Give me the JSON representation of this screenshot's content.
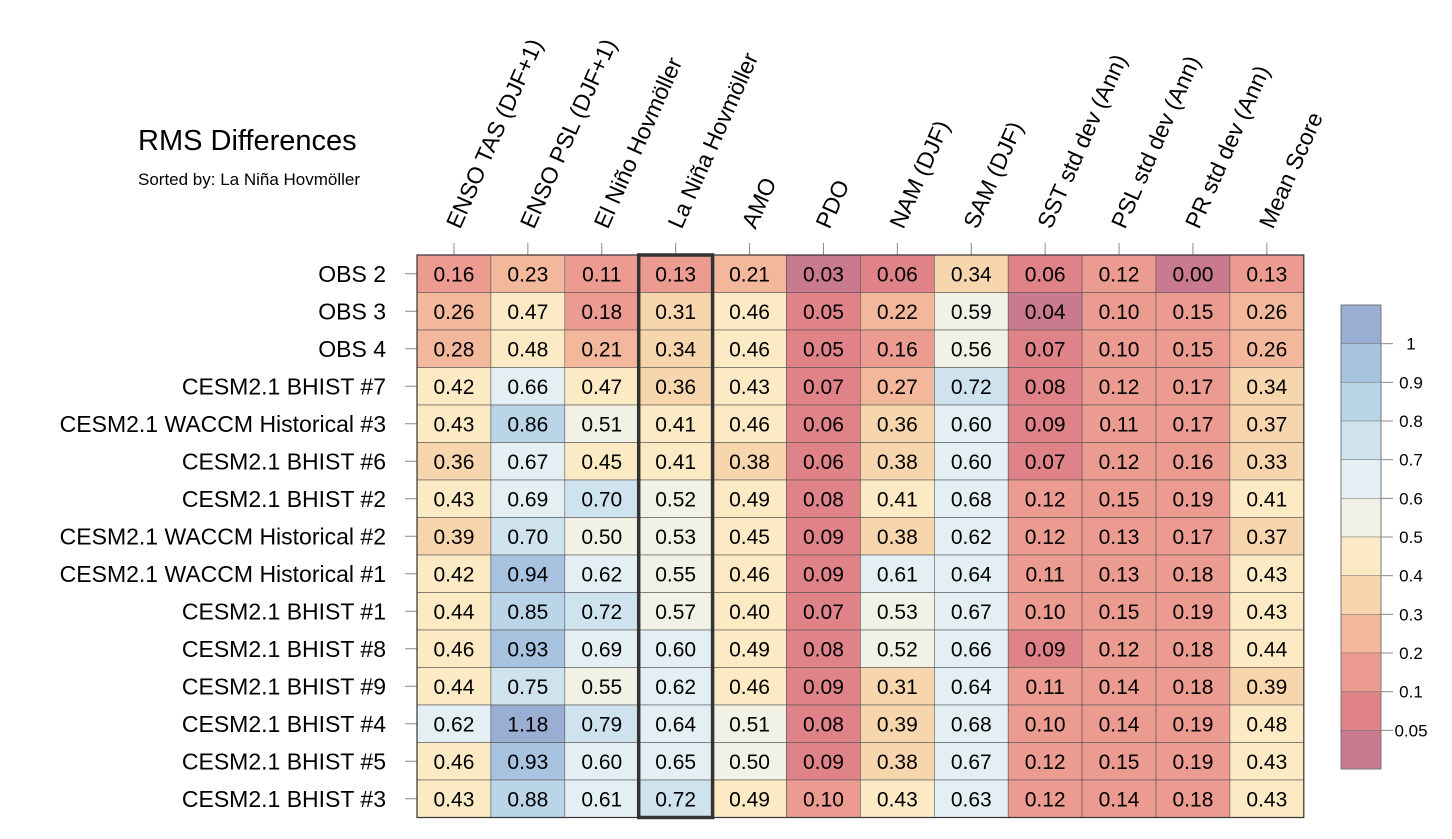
{
  "title": "RMS Differences",
  "subtitle": "Sorted by: La Niña Hovmöller",
  "chart_data": {
    "type": "heatmap",
    "title": "RMS Differences",
    "subtitle": "Sorted by: La Niña Hovmöller",
    "sorted_by": "La Niña Hovmöller",
    "columns": [
      "ENSO TAS (DJF+1)",
      "ENSO PSL (DJF+1)",
      "El Niño Hovmöller",
      "La Niña Hovmöller",
      "AMO",
      "PDO",
      "NAM (DJF)",
      "SAM (DJF)",
      "SST std dev (Ann)",
      "PSL std dev (Ann)",
      "PR std dev (Ann)",
      "Mean Score"
    ],
    "rows": [
      "OBS 2",
      "OBS 3",
      "OBS 4",
      "CESM2.1 BHIST #7",
      "CESM2.1 WACCM Historical #3",
      "CESM2.1 BHIST #6",
      "CESM2.1 BHIST #2",
      "CESM2.1 WACCM Historical #2",
      "CESM2.1 WACCM Historical #1",
      "CESM2.1 BHIST #1",
      "CESM2.1 BHIST #8",
      "CESM2.1 BHIST #9",
      "CESM2.1 BHIST #4",
      "CESM2.1 BHIST #5",
      "CESM2.1 BHIST #3"
    ],
    "values": [
      [
        0.16,
        0.23,
        0.11,
        0.13,
        0.21,
        0.03,
        0.06,
        0.34,
        0.06,
        0.12,
        0.0,
        0.13
      ],
      [
        0.26,
        0.47,
        0.18,
        0.31,
        0.46,
        0.05,
        0.22,
        0.59,
        0.04,
        0.1,
        0.15,
        0.26
      ],
      [
        0.28,
        0.48,
        0.21,
        0.34,
        0.46,
        0.05,
        0.16,
        0.56,
        0.07,
        0.1,
        0.15,
        0.26
      ],
      [
        0.42,
        0.66,
        0.47,
        0.36,
        0.43,
        0.07,
        0.27,
        0.72,
        0.08,
        0.12,
        0.17,
        0.34
      ],
      [
        0.43,
        0.86,
        0.51,
        0.41,
        0.46,
        0.06,
        0.36,
        0.6,
        0.09,
        0.11,
        0.17,
        0.37
      ],
      [
        0.36,
        0.67,
        0.45,
        0.41,
        0.38,
        0.06,
        0.38,
        0.6,
        0.07,
        0.12,
        0.16,
        0.33
      ],
      [
        0.43,
        0.69,
        0.7,
        0.52,
        0.49,
        0.08,
        0.41,
        0.68,
        0.12,
        0.15,
        0.19,
        0.41
      ],
      [
        0.39,
        0.7,
        0.5,
        0.53,
        0.45,
        0.09,
        0.38,
        0.62,
        0.12,
        0.13,
        0.17,
        0.37
      ],
      [
        0.42,
        0.94,
        0.62,
        0.55,
        0.46,
        0.09,
        0.61,
        0.64,
        0.11,
        0.13,
        0.18,
        0.43
      ],
      [
        0.44,
        0.85,
        0.72,
        0.57,
        0.4,
        0.07,
        0.53,
        0.67,
        0.1,
        0.15,
        0.19,
        0.43
      ],
      [
        0.46,
        0.93,
        0.69,
        0.6,
        0.49,
        0.08,
        0.52,
        0.66,
        0.09,
        0.12,
        0.18,
        0.44
      ],
      [
        0.44,
        0.75,
        0.55,
        0.62,
        0.46,
        0.09,
        0.31,
        0.64,
        0.11,
        0.14,
        0.18,
        0.39
      ],
      [
        0.62,
        1.18,
        0.79,
        0.64,
        0.51,
        0.08,
        0.39,
        0.68,
        0.1,
        0.14,
        0.19,
        0.48
      ],
      [
        0.46,
        0.93,
        0.6,
        0.65,
        0.5,
        0.09,
        0.38,
        0.67,
        0.12,
        0.15,
        0.19,
        0.43
      ],
      [
        0.43,
        0.88,
        0.61,
        0.72,
        0.49,
        0.1,
        0.43,
        0.63,
        0.12,
        0.14,
        0.18,
        0.43
      ]
    ],
    "colorbar": {
      "levels": [
        0.05,
        0.1,
        0.2,
        0.3,
        0.4,
        0.5,
        0.6,
        0.7,
        0.8,
        0.9,
        1
      ],
      "labels": [
        "0.05",
        "0.1",
        "0.2",
        "0.3",
        "0.4",
        "0.5",
        "0.6",
        "0.7",
        "0.8",
        "0.9",
        "1"
      ],
      "colors": [
        "#c97a8e",
        "#df8389",
        "#ec9b90",
        "#f3b89c",
        "#f8d6ad",
        "#fbeac4",
        "#f2f1e6",
        "#e4eff4",
        "#cfe3ef",
        "#bad5e8",
        "#a8c3e0",
        "#9aaed3"
      ]
    }
  }
}
